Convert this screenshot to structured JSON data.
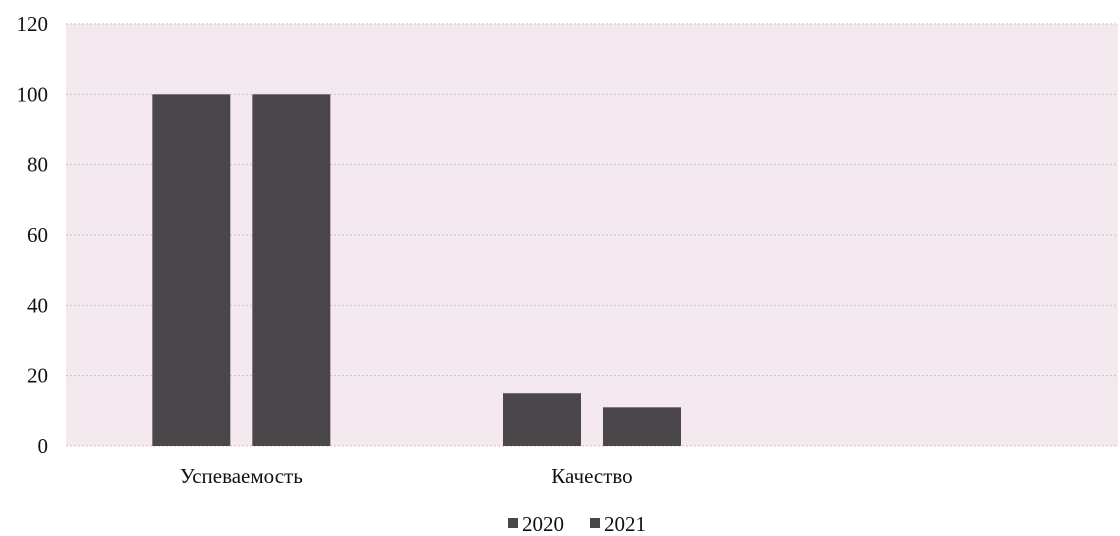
{
  "chart_data": {
    "type": "bar",
    "title": "",
    "xlabel": "",
    "ylabel": "",
    "categories": [
      "Успеваемость",
      "Качество"
    ],
    "series": [
      {
        "name": "2020",
        "values": [
          100,
          15
        ]
      },
      {
        "name": "2021",
        "values": [
          100,
          11
        ]
      }
    ],
    "ylim": [
      0,
      120
    ],
    "yticks": [
      0,
      20,
      40,
      60,
      80,
      100,
      120
    ],
    "grid": true,
    "legend_position": "bottom",
    "colors": {
      "bar": "#4a4649",
      "plot_background": "#f3e9ef",
      "grid": "#c9c2c6"
    }
  }
}
